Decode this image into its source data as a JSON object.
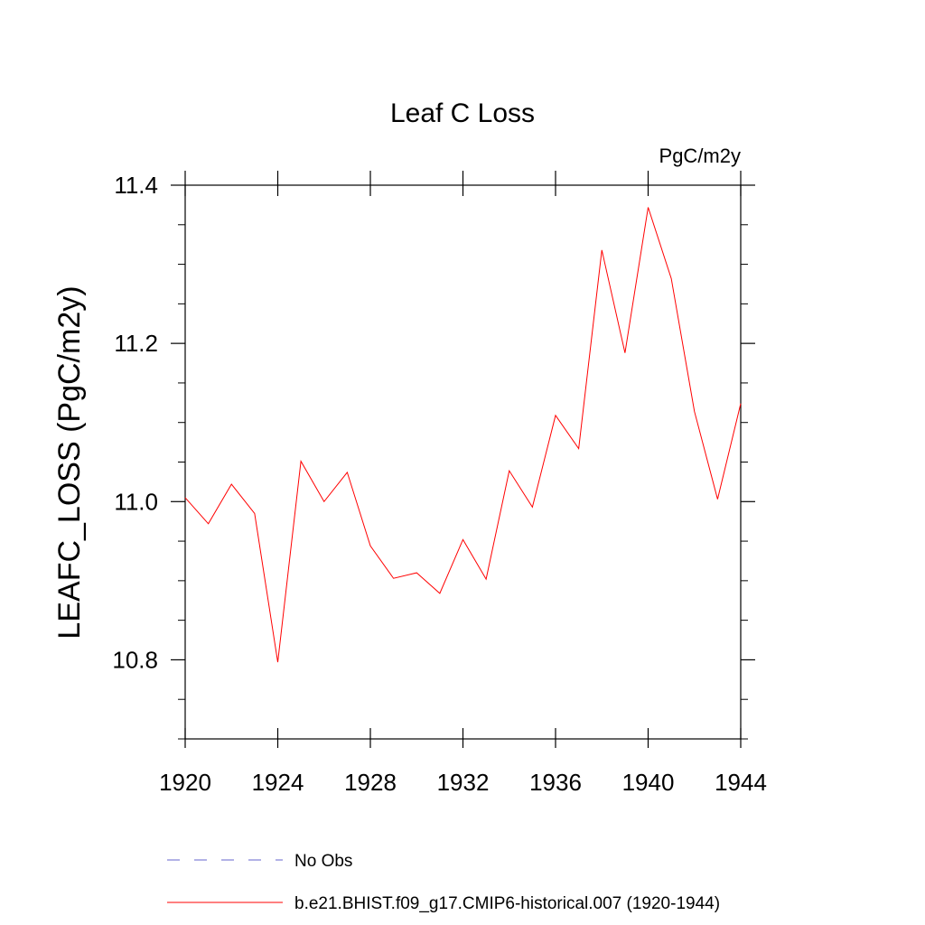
{
  "chart_data": {
    "type": "line",
    "title": "Leaf C Loss",
    "units_label": "PgC/m2y",
    "ylabel": "LEAFC_LOSS  (PgC/m2y)",
    "xlim": [
      1920,
      1944
    ],
    "ylim": [
      10.7,
      11.4
    ],
    "x_ticks": [
      1920,
      1924,
      1928,
      1932,
      1936,
      1940,
      1944
    ],
    "y_ticks": [
      10.8,
      11.0,
      11.2,
      11.4
    ],
    "y_minor_step": 0.05,
    "x": [
      1920,
      1921,
      1922,
      1923,
      1924,
      1925,
      1926,
      1927,
      1928,
      1929,
      1930,
      1931,
      1932,
      1933,
      1934,
      1935,
      1936,
      1937,
      1938,
      1939,
      1940,
      1941,
      1942,
      1943,
      1944
    ],
    "series": [
      {
        "name": "b.e21.BHIST.f09_g17.CMIP6-historical.007 (1920-1944)",
        "color": "#ff0000",
        "style": "solid",
        "values": [
          11.005,
          10.972,
          11.022,
          10.985,
          10.797,
          11.051,
          11.0,
          11.037,
          10.944,
          10.903,
          10.91,
          10.884,
          10.952,
          10.902,
          11.039,
          10.993,
          11.109,
          11.067,
          11.318,
          11.188,
          11.372,
          11.282,
          11.114,
          11.003,
          11.124
        ]
      }
    ],
    "legend": [
      {
        "label": "No Obs",
        "color": "#6666cc",
        "style": "dashed"
      },
      {
        "label": "b.e21.BHIST.f09_g17.CMIP6-historical.007 (1920-1944)",
        "color": "#ff0000",
        "style": "solid"
      }
    ],
    "grid": false,
    "legend_placement": "bottom"
  }
}
